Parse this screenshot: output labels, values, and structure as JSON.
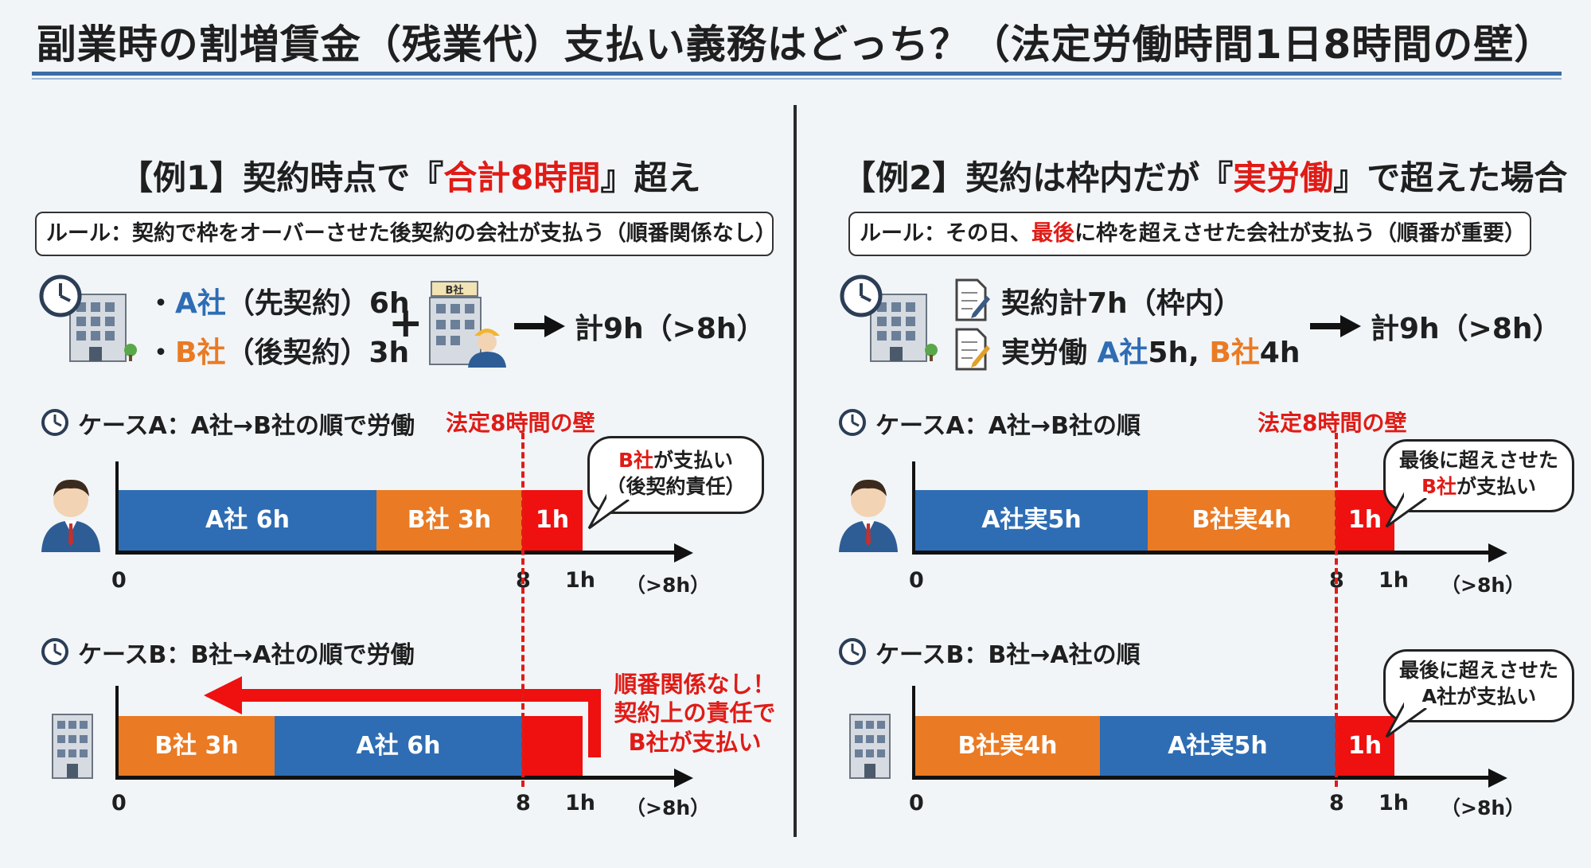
{
  "title": "副業時の割増賃金（残業代）支払い義務はどっち？（法定労働時間1日8時間の壁）",
  "left": {
    "heading_pre": "【例1】契約時点で『",
    "heading_hl": "合計8時間",
    "heading_post": "』超え",
    "rule": "ルール：契約で枠をオーバーさせた後契約の会社が支払う（順番関係なし）",
    "item1_dot": "・",
    "item1_co": "A社",
    "item1_rest": "（先契約）6h",
    "item2_dot": "・",
    "item2_co": "B社",
    "item2_rest": "（後契約）3h",
    "plus": "+",
    "sign": "B社",
    "total": "計9h（>8h）",
    "wall": "法定8時間の壁",
    "caseA": {
      "label": "ケースA：A社→B社の順で労働",
      "bars": [
        "A社 6h",
        "B社 3h",
        "1h"
      ],
      "bubble_l1_co": "B社",
      "bubble_l1_rest": "が支払い",
      "bubble_l2": "（後契約責任）",
      "ticks": [
        "0",
        "8",
        "1h",
        "（>8h）"
      ]
    },
    "caseB": {
      "label": "ケースB：B社→A社の順で労働",
      "bars": [
        "B社 3h",
        "A社 6h"
      ],
      "note": [
        "順番関係なし！",
        "契約上の責任で",
        "B社が支払い"
      ],
      "ticks": [
        "0",
        "8",
        "1h",
        "（>8h）"
      ]
    }
  },
  "right": {
    "heading_pre": "【例2】契約は枠内だが『",
    "heading_hl": "実労働",
    "heading_post": "』で超えた場合",
    "rule_pre": "ルール：その日、",
    "rule_hl": "最後",
    "rule_post": "に枠を超えさせた会社が支払う（順番が重要）",
    "item1": "契約計7h（枠内）",
    "item2_pre": "実労働 ",
    "item2_a": "A社",
    "item2_a_val": "5h, ",
    "item2_b": "B社",
    "item2_b_val": "4h",
    "total": "計9h（>8h）",
    "wall": "法定8時間の壁",
    "caseA": {
      "label": "ケースA：A社→B社の順",
      "bars": [
        "A社実5h",
        "B社実4h",
        "1h"
      ],
      "bubble_l1": "最後に超えさせた",
      "bubble_l2_co": "B社",
      "bubble_l2_rest": "が支払い",
      "ticks": [
        "0",
        "8",
        "1h",
        "（>8h）"
      ]
    },
    "caseB": {
      "label": "ケースB：B社→A社の順",
      "bars": [
        "B社実4h",
        "A社実5h",
        "1h"
      ],
      "bubble_l1": "最後に超えさせた",
      "bubble_l2": "A社が支払い",
      "ticks": [
        "0",
        "8",
        "1h",
        "（>8h）"
      ]
    }
  },
  "colors": {
    "companyA": "#2e6db4",
    "companyB": "#ea7a23",
    "overtime": "#ef1010",
    "wall": "#e01b16"
  },
  "icons": [
    "clock-icon",
    "office-building-icon",
    "worker-building-icon",
    "document-pen-icon",
    "businessman-icon",
    "building-icon"
  ]
}
